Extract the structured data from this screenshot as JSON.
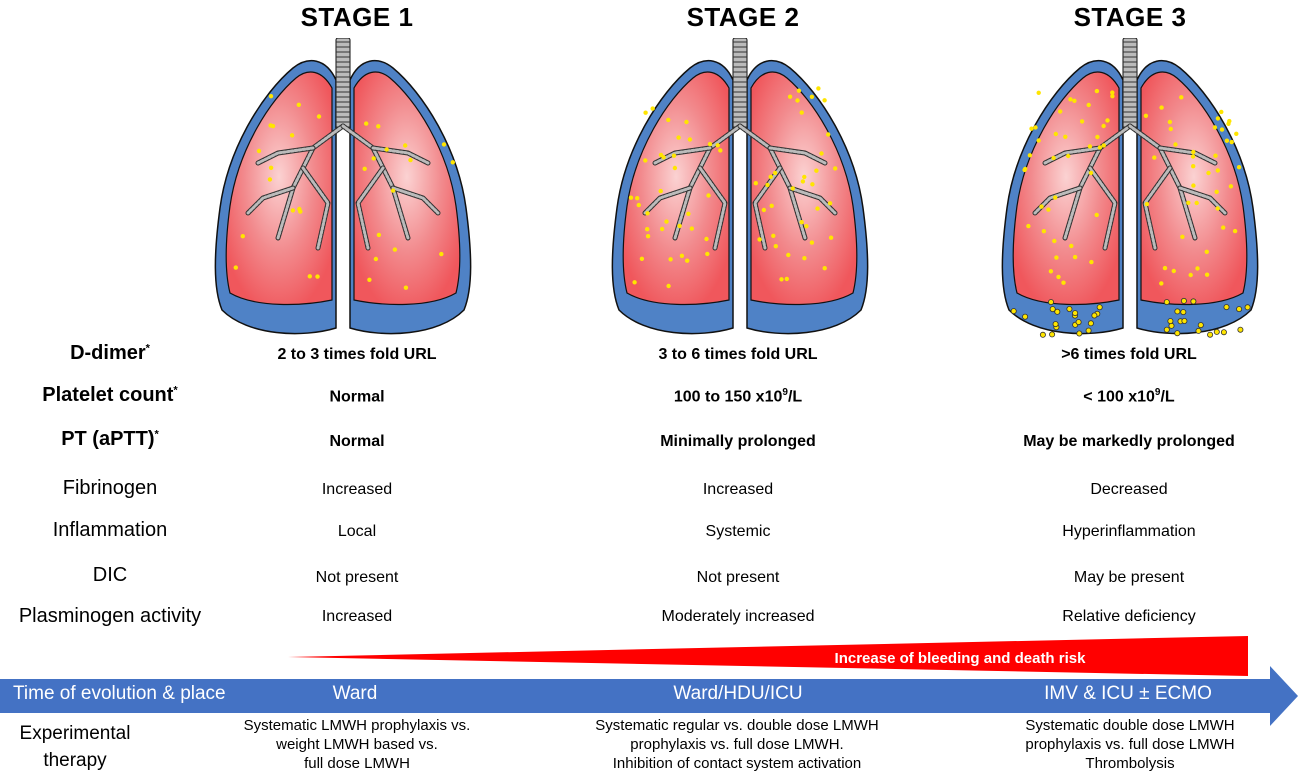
{
  "stages": [
    {
      "title": "STAGE 1",
      "d_dimer": "2 to 3 times fold URL",
      "platelet_count": "Normal",
      "platelet_sup": "",
      "platelet_tail": "",
      "pt": "Normal",
      "fibrinogen": "Increased",
      "inflammation": "Local",
      "dic": "Not present",
      "plasminogen": "Increased",
      "place": "Ward",
      "therapy": [
        "Systematic LMWH prophylaxis vs.",
        "weight LMWH based vs.",
        "full dose LMWH"
      ]
    },
    {
      "title": "STAGE 2",
      "d_dimer": "3 to 6 times fold URL",
      "platelet_count": "100 to 150 x10",
      "platelet_sup": "9",
      "platelet_tail": "/L",
      "pt": "Minimally prolonged",
      "fibrinogen": "Increased",
      "inflammation": "Systemic",
      "dic": "Not present",
      "plasminogen": "Moderately increased",
      "place": "Ward/HDU/ICU",
      "therapy": [
        "Systematic regular vs. double dose LMWH",
        "prophylaxis  vs. full dose LMWH.",
        "Inhibition of  contact system activation"
      ]
    },
    {
      "title": "STAGE 3",
      "d_dimer": ">6 times fold URL",
      "platelet_count": "< 100 x10",
      "platelet_sup": "9",
      "platelet_tail": "/L",
      "pt": "May be markedly prolonged",
      "fibrinogen": "Decreased",
      "inflammation": "Hyperinflammation",
      "dic": "May be present",
      "plasminogen": "Relative deficiency",
      "place": "IMV & ICU ± ECMO",
      "therapy": [
        "Systematic double dose LMWH",
        "prophylaxis  vs.  full dose LMWH",
        "Thrombolysis"
      ]
    }
  ],
  "row_labels": {
    "d_dimer": "D-dimer",
    "platelet_count": "Platelet count",
    "pt": "PT (aPTT)",
    "asterisk": "*",
    "fibrinogen": "Fibrinogen",
    "inflammation": "Inflammation",
    "dic": "DIC",
    "plasminogen": "Plasminogen activity",
    "time_place": "Time of evolution & place",
    "experimental_line1": "Experimental",
    "experimental_line2": "therapy"
  },
  "risk_wedge_label": "Increase of bleeding and death risk",
  "colors": {
    "lung_fill": "#f0575c",
    "lung_highlight": "#fbd2d2",
    "pleura": "#4f82c6",
    "clot_dot": "#ffe500",
    "arrow_blue": "#4472c4",
    "risk_red": "#ff0000"
  },
  "icons": {
    "lungs": "lungs-icon",
    "trachea": "trachea-icon",
    "timeline_arrow": "arrow-right-icon"
  }
}
